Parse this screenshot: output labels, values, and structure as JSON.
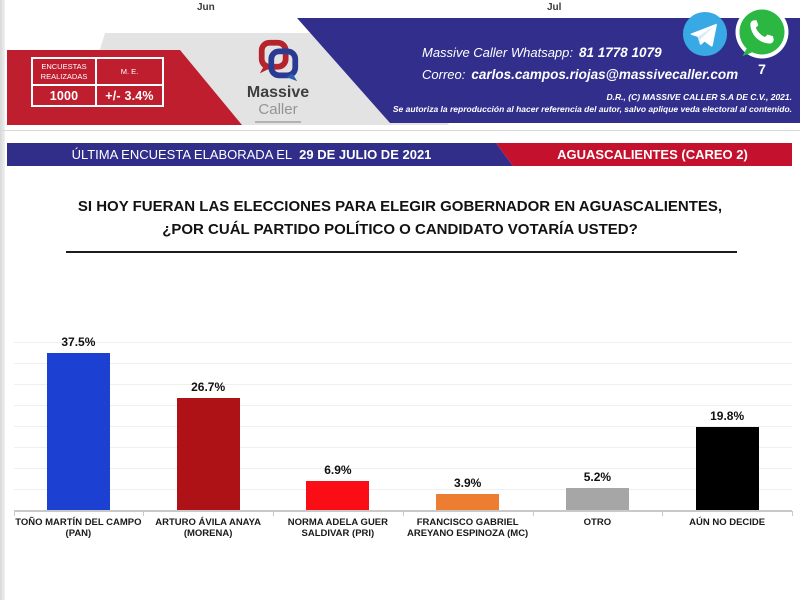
{
  "page": {
    "months": {
      "left": "Jun",
      "right": "Jul"
    }
  },
  "header": {
    "stats": {
      "col1_label": "ENCUESTAS REALIZADAS",
      "col2_label": "M. E.",
      "col1_value": "1000",
      "col2_value": "+/- 3.4%"
    },
    "logo": {
      "brand_top": "Massive",
      "brand_bottom": "Caller"
    },
    "contact": {
      "whatsapp_label": "Massive Caller Whatsapp:",
      "whatsapp_number": "81 1778 1079",
      "email_label": "Correo:",
      "email": "carlos.campos.riojas@massivecaller.com",
      "share_count": "7"
    },
    "copyright": {
      "line1": "D.R., (C) MASSIVE CALLER S.A DE C.V., 2021.",
      "line2": "Se autoriza la reproducción al hacer referencia del autor, salvo aplique veda electoral al contenido."
    },
    "colors": {
      "band_red": "#bf1e2e",
      "band_navy": "#322f8c",
      "band_gray": "#e4e3e3",
      "telegram_blue": "#38a9e4",
      "whatsapp_green": "#2cb742"
    }
  },
  "banner": {
    "date_label": "ÚLTIMA ENCUESTA ELABORADA EL",
    "date_value": "29 DE JULIO DE 2021",
    "region": "AGUASCALIENTES (CAREO 2)",
    "blue": "#312e8a",
    "red": "#c4112e"
  },
  "question": {
    "line1": "SI HOY FUERAN LAS ELECCIONES PARA ELEGIR GOBERNADOR EN AGUASCALIENTES,",
    "line2": "¿POR CUÁL PARTIDO POLÍTICO O CANDIDATO VOTARÍA USTED?"
  },
  "chart_data": {
    "type": "bar",
    "title": "",
    "xlabel": "",
    "ylabel": "",
    "categories": [
      "TOÑO MARTÍN DEL CAMPO (PAN)",
      "ARTURO ÁVILA ANAYA (MORENA)",
      "NORMA ADELA GUER SALDIVAR (PRI)",
      "FRANCISCO GABRIEL AREYANO ESPINOZA (MC)",
      "OTRO",
      "AÚN NO DECIDE"
    ],
    "categories_lines": [
      [
        "TOÑO MARTÍN DEL CAMPO",
        "(PAN)"
      ],
      [
        "ARTURO ÁVILA ANAYA",
        "(MORENA)"
      ],
      [
        "NORMA ADELA GUER",
        "SALDIVAR (PRI)"
      ],
      [
        "FRANCISCO GABRIEL",
        "AREYANO ESPINOZA (MC)"
      ],
      [
        "OTRO"
      ],
      [
        "AÚN NO DECIDE"
      ]
    ],
    "values": [
      37.5,
      26.7,
      6.9,
      3.9,
      5.2,
      19.8
    ],
    "labels": [
      "37.5%",
      "26.7%",
      "6.9%",
      "3.9%",
      "5.2%",
      "19.8%"
    ],
    "bar_colors": [
      "#1c40d2",
      "#ae1116",
      "#fb0d15",
      "#ed7d31",
      "#a6a6a6",
      "#000000"
    ],
    "ylim": [
      0,
      40
    ],
    "grid": true,
    "grid_step": 5,
    "legend_position": "none"
  }
}
